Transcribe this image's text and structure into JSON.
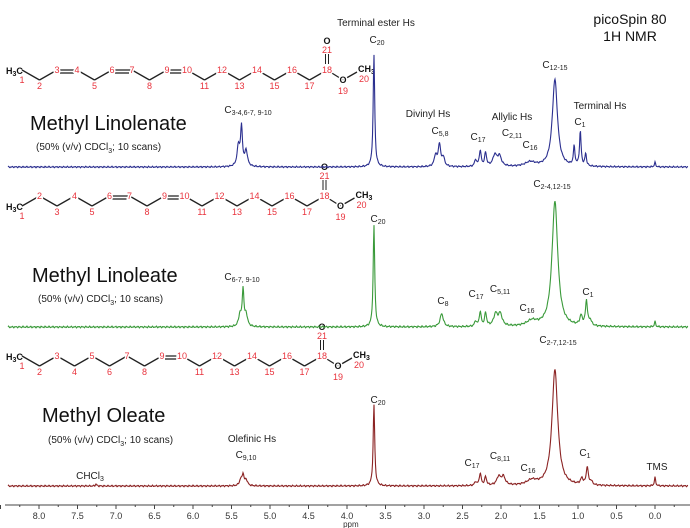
{
  "chart_data": {
    "type": "line",
    "title": "picoSpin 80",
    "subtitle": "1H NMR",
    "xlabel": "ppm",
    "xlim": [
      8.6,
      -0.4
    ],
    "xticks": [
      "8.0",
      "7.5",
      "7.0",
      "6.5",
      "6.0",
      "5.5",
      "5.0",
      "4.5",
      "4.0",
      "3.5",
      "3.0",
      "2.5",
      "2.0",
      "1.5",
      "1.0",
      "0.5",
      "0.0"
    ],
    "grid": false,
    "series": [
      {
        "name": "Methyl Linolenate",
        "condition_pre": "(50% (v/v) CDCl",
        "condition_sub": "3",
        "condition_post": "; 10 scans)",
        "color": "#2b2f8f",
        "double_bonds": [
          [
            3,
            4
          ],
          [
            6,
            7
          ],
          [
            9,
            10
          ]
        ],
        "peaks_ppm_intensity_width": [
          [
            5.41,
            18,
            0.02
          ],
          [
            5.37,
            34,
            0.015
          ],
          [
            5.31,
            14,
            0.02
          ],
          [
            3.65,
            100,
            0.012
          ],
          [
            2.85,
            10,
            0.02
          ],
          [
            2.8,
            20,
            0.018
          ],
          [
            2.75,
            8,
            0.02
          ],
          [
            2.33,
            6,
            0.015
          ],
          [
            2.27,
            14,
            0.015
          ],
          [
            2.2,
            12,
            0.015
          ],
          [
            2.08,
            10,
            0.03
          ],
          [
            2.02,
            9,
            0.03
          ],
          [
            1.62,
            4,
            0.08
          ],
          [
            1.3,
            78,
            0.04
          ],
          [
            1.05,
            17,
            0.012
          ],
          [
            0.97,
            31,
            0.012
          ],
          [
            0.9,
            11,
            0.012
          ],
          [
            0.0,
            4,
            0.01
          ]
        ],
        "annotations": [
          {
            "pre": "",
            "main": "C",
            "sub": "3-4,6-7, 9-10"
          },
          {
            "pre": "Terminal ester Hs",
            "main": "C",
            "sub": "20"
          },
          {
            "pre": "Divinyl Hs",
            "main": "C",
            "sub": "5,8"
          },
          {
            "pre": "",
            "main": "C",
            "sub": "17"
          },
          {
            "pre": "Allylic Hs",
            "main": "C",
            "sub": "2,11"
          },
          {
            "pre": "",
            "main": "C",
            "sub": "16"
          },
          {
            "pre": "",
            "main": "C",
            "sub": "12-15"
          },
          {
            "pre": "Terminal Hs",
            "main": "C",
            "sub": "1"
          }
        ]
      },
      {
        "name": "Methyl Linoleate",
        "condition_pre": "(50% (v/v) CDCl",
        "condition_sub": "3",
        "condition_post": "; 10 scans)",
        "color": "#3a9a3a",
        "double_bonds": [
          [
            6,
            7
          ],
          [
            9,
            10
          ]
        ],
        "peaks_ppm_intensity_width": [
          [
            5.39,
            9,
            0.02
          ],
          [
            5.35,
            28,
            0.013
          ],
          [
            5.31,
            9,
            0.02
          ],
          [
            3.65,
            77,
            0.012
          ],
          [
            2.77,
            10,
            0.025
          ],
          [
            2.33,
            4,
            0.015
          ],
          [
            2.27,
            11,
            0.015
          ],
          [
            2.2,
            10,
            0.015
          ],
          [
            2.07,
            9,
            0.03
          ],
          [
            2.01,
            9,
            0.03
          ],
          [
            1.6,
            4,
            0.08
          ],
          [
            1.3,
            95,
            0.045
          ],
          [
            0.96,
            7,
            0.02
          ],
          [
            0.89,
            19,
            0.015
          ],
          [
            0.84,
            4,
            0.02
          ],
          [
            0.0,
            4,
            0.01
          ]
        ],
        "annotations": [
          {
            "pre": "",
            "main": "C",
            "sub": "6-7, 9-10"
          },
          {
            "pre": "",
            "main": "C",
            "sub": "20"
          },
          {
            "pre": "",
            "main": "C",
            "sub": "8"
          },
          {
            "pre": "",
            "main": "C",
            "sub": "17"
          },
          {
            "pre": "",
            "main": "C",
            "sub": "5,11"
          },
          {
            "pre": "",
            "main": "C",
            "sub": "16"
          },
          {
            "pre": "",
            "main": "C",
            "sub": "2-4,12-15"
          },
          {
            "pre": "",
            "main": "C",
            "sub": "1"
          }
        ]
      },
      {
        "name": "Methyl Oleate",
        "condition_pre": "(50% (v/v) CDCl",
        "condition_sub": "3",
        "condition_post": "; 10 scans)",
        "color": "#8b2323",
        "double_bonds": [
          [
            9,
            10
          ]
        ],
        "peaks_ppm_intensity_width": [
          [
            7.26,
            1.5,
            0.01
          ],
          [
            5.38,
            5,
            0.02
          ],
          [
            5.35,
            9,
            0.013
          ],
          [
            5.31,
            5,
            0.02
          ],
          [
            3.65,
            67,
            0.012
          ],
          [
            2.33,
            3,
            0.015
          ],
          [
            2.27,
            10,
            0.015
          ],
          [
            2.2,
            7,
            0.015
          ],
          [
            2.03,
            7,
            0.03
          ],
          [
            1.97,
            7,
            0.03
          ],
          [
            1.6,
            4,
            0.08
          ],
          [
            1.3,
            96,
            0.045
          ],
          [
            0.95,
            5,
            0.02
          ],
          [
            0.88,
            15,
            0.015
          ],
          [
            0.83,
            3,
            0.02
          ],
          [
            0.0,
            7,
            0.01
          ]
        ],
        "annotations": [
          {
            "pre": "",
            "main": "CHCl",
            "sub": "3"
          },
          {
            "pre": "Olefinic Hs",
            "main": "C",
            "sub": "9,10"
          },
          {
            "pre": "",
            "main": "C",
            "sub": "20"
          },
          {
            "pre": "",
            "main": "C",
            "sub": "17"
          },
          {
            "pre": "",
            "main": "C",
            "sub": "8,11"
          },
          {
            "pre": "",
            "main": "C",
            "sub": "16"
          },
          {
            "pre": "",
            "main": "C",
            "sub": "2-7,12-15"
          },
          {
            "pre": "",
            "main": "C",
            "sub": "1"
          },
          {
            "pre": "",
            "main": "TMS",
            "sub": ""
          }
        ]
      }
    ],
    "structure": {
      "atom_numbers": [
        "1",
        "2",
        "3",
        "4",
        "5",
        "6",
        "7",
        "8",
        "9",
        "10",
        "11",
        "12",
        "13",
        "14",
        "15",
        "16",
        "17",
        "18",
        "19",
        "20",
        "21"
      ],
      "h3c_main": "H",
      "h3c_sub": "3",
      "h3c_c": "C",
      "ch3_main": "CH",
      "ch3_sub": "3",
      "oxygen": "O"
    }
  }
}
